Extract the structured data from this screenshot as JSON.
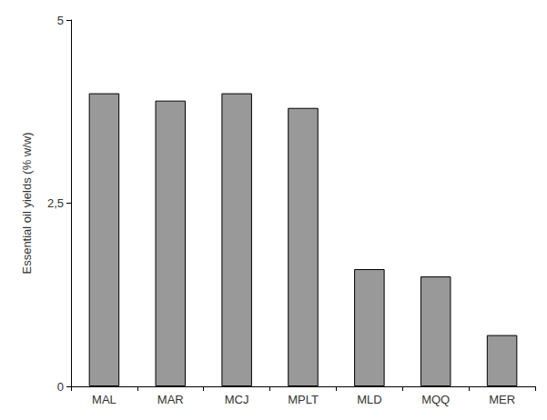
{
  "chart_data": {
    "type": "bar",
    "y_label": "Essential oil yields (% w/w)",
    "categories": [
      "MAL",
      "MAR",
      "MCJ",
      "MPLT",
      "MLD",
      "MQQ",
      "MER"
    ],
    "values": [
      4.0,
      3.9,
      4.0,
      3.8,
      1.6,
      1.5,
      0.7
    ],
    "color": "#999999",
    "ylim": [
      0,
      5
    ],
    "yticks": [
      0,
      {
        "value": 2.5,
        "label": "2,5"
      },
      5
    ],
    "grid": false
  }
}
